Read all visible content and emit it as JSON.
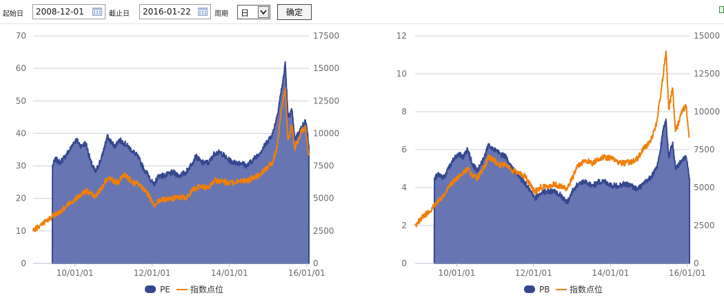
{
  "toolbar": {
    "start_label": "起始日",
    "start_value": "2008-12-01",
    "end_label": "截止日",
    "end_value": "2016-01-22",
    "period_label": "周期",
    "period_value": "日",
    "confirm_label": "确定",
    "icons": {
      "calendar": "calendar-icon",
      "dropdown": "chevron-down-icon"
    }
  },
  "colors": {
    "area_fill": "#5a69ac",
    "area_stroke": "#34478f",
    "line": "#f07f09",
    "grid": "#c9cfdc",
    "axis_text": "#6a6a6a",
    "background": "#ffffff"
  },
  "chart_data": [
    {
      "type": "area",
      "x_start": "2008-12-01",
      "x_end": "2016-01-22",
      "x_ticks": [
        "10/01/01",
        "12/01/01",
        "14/01/01",
        "16/01/01"
      ],
      "y_left_lim": [
        0,
        70
      ],
      "y_left_ticks": [
        "0",
        "10",
        "20",
        "30",
        "40",
        "50",
        "60",
        "70"
      ],
      "y_right_lim": [
        0,
        17500
      ],
      "y_right_ticks": [
        "0",
        "2500",
        "5000",
        "7500",
        "10000",
        "12500",
        "15000",
        "17500"
      ],
      "legend_position": "bottom",
      "grid": true,
      "series": [
        {
          "name": "PE",
          "type": "area",
          "axis": "left",
          "points": [
            [
              "2009-06-01",
              0
            ],
            [
              "2009-06-03",
              30
            ],
            [
              "2009-07-01",
              32
            ],
            [
              "2009-08-15",
              31
            ],
            [
              "2009-10-01",
              33
            ],
            [
              "2009-11-15",
              35
            ],
            [
              "2009-12-15",
              37
            ],
            [
              "2010-01-15",
              38
            ],
            [
              "2010-03-01",
              36
            ],
            [
              "2010-04-15",
              37
            ],
            [
              "2010-06-01",
              31
            ],
            [
              "2010-07-15",
              28
            ],
            [
              "2010-09-15",
              33
            ],
            [
              "2010-11-01",
              39
            ],
            [
              "2010-12-15",
              37
            ],
            [
              "2011-01-15",
              36
            ],
            [
              "2011-02-20",
              38
            ],
            [
              "2011-04-15",
              37
            ],
            [
              "2011-06-15",
              35
            ],
            [
              "2011-08-15",
              33
            ],
            [
              "2011-10-15",
              29
            ],
            [
              "2011-12-01",
              27
            ],
            [
              "2012-01-15",
              24
            ],
            [
              "2012-03-01",
              27
            ],
            [
              "2012-05-01",
              27
            ],
            [
              "2012-07-15",
              28
            ],
            [
              "2012-09-15",
              27
            ],
            [
              "2012-11-15",
              28
            ],
            [
              "2013-01-15",
              31
            ],
            [
              "2013-02-15",
              33
            ],
            [
              "2013-04-15",
              31
            ],
            [
              "2013-06-20",
              31
            ],
            [
              "2013-08-15",
              34
            ],
            [
              "2013-10-15",
              34
            ],
            [
              "2013-12-15",
              32
            ],
            [
              "2014-02-15",
              31
            ],
            [
              "2014-04-15",
              31
            ],
            [
              "2014-06-15",
              30
            ],
            [
              "2014-08-15",
              32
            ],
            [
              "2014-10-15",
              34
            ],
            [
              "2014-12-15",
              37
            ],
            [
              "2015-02-15",
              40
            ],
            [
              "2015-03-31",
              46
            ],
            [
              "2015-04-30",
              52
            ],
            [
              "2015-05-31",
              58
            ],
            [
              "2015-06-12",
              62
            ],
            [
              "2015-07-08",
              45
            ],
            [
              "2015-08-15",
              47
            ],
            [
              "2015-09-10",
              38
            ],
            [
              "2015-10-15",
              40
            ],
            [
              "2015-11-15",
              42
            ],
            [
              "2015-12-20",
              44
            ],
            [
              "2016-01-10",
              40
            ],
            [
              "2016-01-22",
              36
            ]
          ]
        },
        {
          "name": "指数点位",
          "type": "line",
          "axis": "right",
          "points": [
            [
              "2008-12-01",
              2500
            ],
            [
              "2009-02-15",
              3000
            ],
            [
              "2009-04-15",
              3300
            ],
            [
              "2009-06-15",
              3700
            ],
            [
              "2009-08-15",
              4000
            ],
            [
              "2009-10-15",
              4400
            ],
            [
              "2009-12-15",
              4800
            ],
            [
              "2010-02-15",
              5200
            ],
            [
              "2010-04-15",
              5600
            ],
            [
              "2010-06-01",
              5400
            ],
            [
              "2010-07-15",
              5100
            ],
            [
              "2010-09-15",
              5900
            ],
            [
              "2010-11-01",
              6500
            ],
            [
              "2010-12-15",
              6400
            ],
            [
              "2011-02-15",
              6200
            ],
            [
              "2011-04-15",
              6900
            ],
            [
              "2011-06-15",
              6300
            ],
            [
              "2011-08-15",
              6100
            ],
            [
              "2011-10-15",
              5700
            ],
            [
              "2011-12-01",
              5200
            ],
            [
              "2012-01-15",
              4400
            ],
            [
              "2012-03-01",
              4800
            ],
            [
              "2012-05-01",
              4900
            ],
            [
              "2012-07-15",
              5000
            ],
            [
              "2012-09-15",
              5100
            ],
            [
              "2012-11-15",
              5000
            ],
            [
              "2013-01-15",
              5600
            ],
            [
              "2013-02-15",
              5800
            ],
            [
              "2013-04-15",
              5900
            ],
            [
              "2013-06-20",
              5800
            ],
            [
              "2013-08-15",
              6400
            ],
            [
              "2013-10-15",
              6300
            ],
            [
              "2013-12-15",
              6200
            ],
            [
              "2014-02-15",
              6200
            ],
            [
              "2014-04-15",
              6400
            ],
            [
              "2014-06-15",
              6300
            ],
            [
              "2014-08-15",
              6600
            ],
            [
              "2014-10-15",
              6800
            ],
            [
              "2014-12-15",
              7300
            ],
            [
              "2015-02-15",
              7800
            ],
            [
              "2015-03-31",
              9100
            ],
            [
              "2015-04-30",
              11500
            ],
            [
              "2015-05-31",
              12800
            ],
            [
              "2015-06-12",
              13500
            ],
            [
              "2015-07-08",
              9500
            ],
            [
              "2015-08-15",
              10600
            ],
            [
              "2015-09-10",
              8800
            ],
            [
              "2015-10-15",
              9500
            ],
            [
              "2015-11-15",
              10200
            ],
            [
              "2015-12-20",
              10500
            ],
            [
              "2016-01-10",
              9000
            ],
            [
              "2016-01-22",
              8300
            ]
          ]
        }
      ]
    },
    {
      "type": "area",
      "x_start": "2008-12-01",
      "x_end": "2016-01-22",
      "x_ticks": [
        "10/01/01",
        "12/01/01",
        "14/01/01",
        "16/01/01"
      ],
      "y_left_lim": [
        0,
        12
      ],
      "y_left_ticks": [
        "0",
        "2",
        "4",
        "6",
        "8",
        "10",
        "12"
      ],
      "y_right_lim": [
        0,
        15000
      ],
      "y_right_ticks": [
        "0",
        "2500",
        "5000",
        "7500",
        "10000",
        "12500",
        "15000"
      ],
      "legend_position": "bottom",
      "grid": true,
      "series": [
        {
          "name": "PB",
          "type": "area",
          "axis": "left",
          "points": [
            [
              "2009-06-01",
              0
            ],
            [
              "2009-06-03",
              4.5
            ],
            [
              "2009-07-15",
              4.7
            ],
            [
              "2009-09-01",
              4.5
            ],
            [
              "2009-10-15",
              5.0
            ],
            [
              "2009-12-01",
              5.5
            ],
            [
              "2010-01-15",
              5.8
            ],
            [
              "2010-03-01",
              5.6
            ],
            [
              "2010-04-15",
              6.0
            ],
            [
              "2010-06-01",
              5.2
            ],
            [
              "2010-07-15",
              4.9
            ],
            [
              "2010-09-15",
              5.5
            ],
            [
              "2010-11-01",
              6.3
            ],
            [
              "2010-12-15",
              6.0
            ],
            [
              "2011-02-15",
              5.8
            ],
            [
              "2011-04-15",
              5.6
            ],
            [
              "2011-06-15",
              5.0
            ],
            [
              "2011-08-15",
              4.6
            ],
            [
              "2011-10-15",
              4.2
            ],
            [
              "2011-12-01",
              3.8
            ],
            [
              "2012-01-15",
              3.4
            ],
            [
              "2012-03-01",
              3.7
            ],
            [
              "2012-05-01",
              3.8
            ],
            [
              "2012-07-15",
              3.8
            ],
            [
              "2012-09-15",
              3.6
            ],
            [
              "2012-11-15",
              3.2
            ],
            [
              "2013-01-15",
              3.9
            ],
            [
              "2013-03-01",
              4.2
            ],
            [
              "2013-05-15",
              4.3
            ],
            [
              "2013-07-15",
              4.1
            ],
            [
              "2013-09-15",
              4.3
            ],
            [
              "2013-11-15",
              4.3
            ],
            [
              "2014-01-15",
              4.1
            ],
            [
              "2014-03-15",
              4.1
            ],
            [
              "2014-05-15",
              4.2
            ],
            [
              "2014-07-15",
              4.1
            ],
            [
              "2014-09-15",
              3.9
            ],
            [
              "2014-11-15",
              4.2
            ],
            [
              "2015-01-15",
              4.5
            ],
            [
              "2015-03-15",
              5.0
            ],
            [
              "2015-04-15",
              5.8
            ],
            [
              "2015-05-15",
              7.0
            ],
            [
              "2015-06-12",
              7.6
            ],
            [
              "2015-07-08",
              5.6
            ],
            [
              "2015-08-15",
              6.4
            ],
            [
              "2015-09-10",
              5.0
            ],
            [
              "2015-10-15",
              5.2
            ],
            [
              "2015-11-15",
              5.5
            ],
            [
              "2015-12-20",
              5.6
            ],
            [
              "2016-01-10",
              5.0
            ],
            [
              "2016-01-22",
              4.5
            ]
          ]
        },
        {
          "name": "指数点位",
          "type": "line",
          "axis": "right",
          "points": [
            [
              "2008-12-01",
              2500
            ],
            [
              "2009-02-15",
              3100
            ],
            [
              "2009-04-15",
              3400
            ],
            [
              "2009-06-15",
              3900
            ],
            [
              "2009-08-15",
              4300
            ],
            [
              "2009-10-15",
              5000
            ],
            [
              "2009-12-15",
              5500
            ],
            [
              "2010-02-15",
              5900
            ],
            [
              "2010-04-15",
              6200
            ],
            [
              "2010-06-01",
              5800
            ],
            [
              "2010-07-15",
              5600
            ],
            [
              "2010-09-15",
              6300
            ],
            [
              "2010-11-01",
              7000
            ],
            [
              "2010-12-15",
              6800
            ],
            [
              "2011-02-15",
              6500
            ],
            [
              "2011-04-15",
              6500
            ],
            [
              "2011-06-15",
              6100
            ],
            [
              "2011-08-15",
              6000
            ],
            [
              "2011-10-15",
              5700
            ],
            [
              "2011-12-01",
              5200
            ],
            [
              "2012-01-15",
              4700
            ],
            [
              "2012-03-01",
              5000
            ],
            [
              "2012-05-01",
              5100
            ],
            [
              "2012-07-15",
              5200
            ],
            [
              "2012-09-15",
              5100
            ],
            [
              "2012-11-15",
              4900
            ],
            [
              "2013-01-15",
              5800
            ],
            [
              "2013-03-01",
              6500
            ],
            [
              "2013-05-15",
              6800
            ],
            [
              "2013-07-15",
              6600
            ],
            [
              "2013-09-15",
              6900
            ],
            [
              "2013-11-15",
              7000
            ],
            [
              "2014-01-15",
              6900
            ],
            [
              "2014-03-15",
              6700
            ],
            [
              "2014-05-15",
              6600
            ],
            [
              "2014-07-15",
              6700
            ],
            [
              "2014-09-15",
              6900
            ],
            [
              "2014-11-15",
              7600
            ],
            [
              "2015-01-15",
              8000
            ],
            [
              "2015-03-15",
              9300
            ],
            [
              "2015-04-15",
              10700
            ],
            [
              "2015-05-15",
              12300
            ],
            [
              "2015-06-12",
              14000
            ],
            [
              "2015-07-08",
              10200
            ],
            [
              "2015-08-15",
              11500
            ],
            [
              "2015-09-10",
              8700
            ],
            [
              "2015-10-15",
              9400
            ],
            [
              "2015-11-15",
              10100
            ],
            [
              "2015-12-20",
              10400
            ],
            [
              "2016-01-10",
              8900
            ],
            [
              "2016-01-22",
              8300
            ]
          ]
        }
      ]
    }
  ]
}
